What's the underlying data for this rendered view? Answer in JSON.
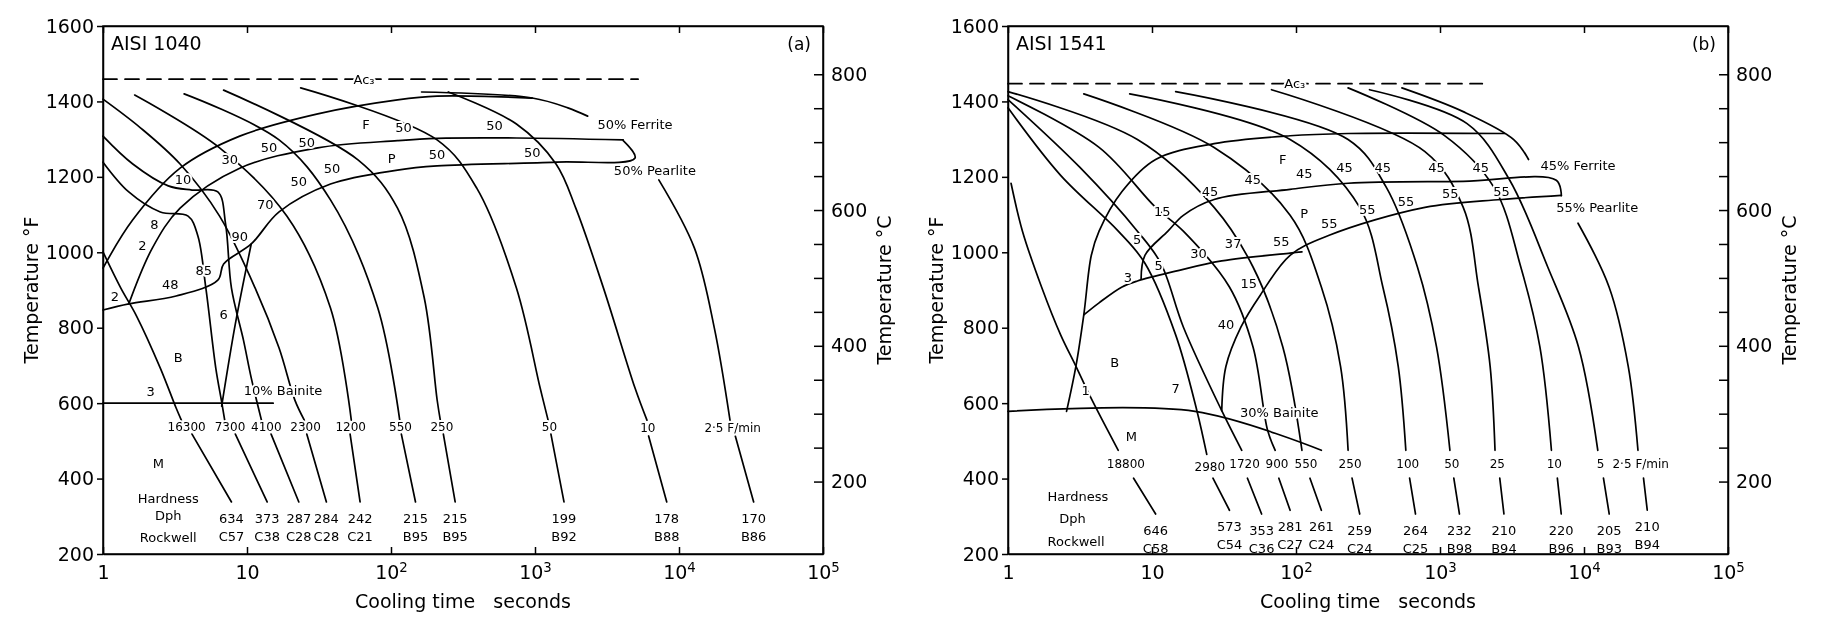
{
  "chart_data": [
    {
      "type": "line",
      "title": "AISI 1040",
      "subtitle": "(a)",
      "xlabel": "Cooling time   seconds",
      "ylabel": "Temperature °F",
      "y2label": "Temperature °C",
      "log": "x",
      "xlim": [
        1,
        100000
      ],
      "xticks": [
        {
          "value": 1,
          "label": "1"
        },
        {
          "value": 10,
          "label": "10"
        },
        {
          "value": 100,
          "label": "10$^{2}$"
        },
        {
          "value": 1000,
          "label": "10$^{3}$"
        },
        {
          "value": 10000,
          "label": "10$^{4}$"
        },
        {
          "value": 100000,
          "label": "10$^{5}$"
        }
      ],
      "ylim": [
        200,
        1600
      ],
      "yticks": [
        200,
        400,
        600,
        800,
        1000,
        1200,
        1400,
        1600
      ],
      "y2lim": [
        93.3,
        871.1
      ],
      "y2ticks": [
        200,
        {
          "value": 250,
          "label": null
        },
        {
          "value": 300,
          "label": null
        },
        {
          "value": 350,
          "label": null
        },
        400,
        {
          "value": 450,
          "label": null
        },
        {
          "value": 500,
          "label": null
        },
        {
          "value": 550,
          "label": null
        },
        600,
        {
          "value": 650,
          "label": null
        },
        {
          "value": 700,
          "label": null
        },
        {
          "value": 750,
          "label": null
        },
        800
      ],
      "series": [
        {
          "name": "16300",
          "color": "#000000",
          "x": [
            1,
            1.33,
            1.71,
            2.5,
            3.22,
            3.5,
            3.8,
            4.15,
            7.8
          ],
          "values": [
            1001,
            905,
            831,
            693,
            587,
            555,
            null,
            518,
            338
          ]
        },
        {
          "name": "7300",
          "color": "#000000",
          "x": [
            1,
            1.51,
            2.5,
            3.9,
            4.56,
            5.18,
            6.07,
            6.67,
            7.0,
            7.5,
            8.3,
            13.8
          ],
          "values": [
            1239,
            1160,
            1107,
            1096,
            1043,
            905,
            693,
            603,
            555,
            null,
            518,
            338
          ]
        },
        {
          "name": "4100",
          "color": "#000000",
          "x": [
            1,
            1.61,
            2.84,
            4.15,
            6.27,
            7.1,
            7.8,
            9.45,
            10.7,
            12.6,
            13.5,
            14.7,
            22.9
          ],
          "values": [
            1308,
            1234,
            1176,
            1165,
            1160,
            1075,
            905,
            767,
            667,
            555,
            null,
            518,
            338
          ]
        },
        {
          "name": "2300",
          "color": "#000000",
          "x": [
            1,
            1.82,
            3.43,
            6.45,
            11.4,
            16.7,
            21.5,
            25,
            25.5,
            26,
            35.6
          ],
          "values": [
            1406,
            1330,
            1234,
            1096,
            905,
            746,
            608,
            555,
            null,
            518,
            338
          ]
        },
        {
          "name": "1200",
          "color": "#000000",
          "x": [
            1.66,
            6.45,
            18.9,
            38,
            53,
            52.5,
            52,
            61
          ],
          "values": [
            1417,
            1277,
            1096,
            852,
            555,
            null,
            518,
            338
          ]
        },
        {
          "name": "550",
          "color": "#000000",
          "x": [
            3.66,
            16.7,
            38,
            81,
            115,
            116,
            118,
            148
          ],
          "values": [
            1420,
            1298,
            1139,
            852,
            555,
            null,
            518,
            338
          ]
        },
        {
          "name": "250",
          "color": "#000000",
          "x": [
            6.88,
            59,
            111,
            170,
            209,
            220,
            225,
            231,
            279
          ],
          "values": [
            1430,
            1245,
            1117,
            880,
            609,
            555,
            null,
            518,
            338
          ]
        },
        {
          "name": "50",
          "color": "#000000",
          "x": [
            23.6,
            209,
            394,
            743,
            1086,
            1233,
            1260,
            1290,
            1590
          ],
          "values": [
            1436,
            1298,
            1170,
            905,
            640,
            555,
            null,
            518,
            338
          ]
        },
        {
          "name": "10",
          "color": "#000000",
          "x": [
            250,
            743,
            1400,
            1920,
            2990,
            4950,
            5990,
            6100,
            6150,
            8220
          ],
          "values": [
            1425,
            1340,
            1234,
            1117,
            905,
            640,
            555,
            null,
            513,
            338
          ]
        },
        {
          "name": "2·5 F/min",
          "color": "#000000",
          "x": [
            163,
            957,
            1692,
            2320,
            5000,
            7240,
            12800,
            17600,
            22600,
            23500,
            24600,
            33000
          ],
          "values": [
            1425,
            1409,
            1383,
            1361,
            null,
            1192,
            1011,
            799,
            555,
            null,
            513,
            338
          ]
        },
        {
          "color": "#000000",
          "x": [
            1,
            1.61,
            3.43,
            8.9,
            31,
            111,
            209,
            957
          ],
          "values": [
            958,
            1086,
            1223,
            1308,
            1367,
            1404,
            1414,
            1409
          ]
        },
        {
          "color": "#000000",
          "x": [
            1.51,
            2.2,
            3.43,
            8.9,
            31,
            111,
            209,
            743,
            4100
          ],
          "values": [
            863,
            1011,
            1117,
            1223,
            1277,
            1296,
            1302,
            1303,
            1298
          ]
        },
        {
          "color": "#000000",
          "x": [
            1,
            1.51,
            3.22,
            6.27,
            6.88,
            10.7,
            16.7,
            38,
            111,
            209,
            1400,
            4950,
            4100
          ],
          "values": [
            847,
            863,
            884,
            926,
            969,
            1022,
            1107,
            1181,
            1218,
            1229,
            1239,
            1250,
            1296
          ]
        },
        {
          "color": "#000000",
          "x": [
            6.67,
            8.3,
            10.7
          ],
          "values": [
            592,
            810,
            1022
          ]
        },
        {
          "color": "#000000",
          "x": [
            1,
            15.2
          ],
          "values": [
            600,
            600
          ]
        },
        {
          "color": "#000000",
          "line_style": "dashed",
          "x": [
            1,
            5200
          ],
          "values": [
            1459,
            1459
          ]
        }
      ],
      "annotations": [
        {
          "text": "Ac₃",
          "x": 65,
          "y": 1459
        },
        "F",
        "P",
        "B",
        "M",
        "50",
        "50",
        "50",
        "30",
        "10",
        "50",
        "50",
        "50",
        "70",
        "90",
        "8",
        "2",
        "48",
        "85",
        "2",
        "6",
        "3",
        "10% Bainite",
        "50",
        "50",
        "50% Ferrite",
        "50% Pearlite",
        "Hardness",
        "Dph",
        "Rockwell",
        {
          "text": "634\nC57",
          "x": 7.8,
          "y": 338
        },
        {
          "text": "373\nC38",
          "x": 13.8,
          "y": 338
        },
        {
          "text": "287\nC28",
          "x": 22.9,
          "y": 338
        },
        {
          "text": "284\nC28",
          "x": 35.6,
          "y": 338
        },
        {
          "text": "242\nC21",
          "x": 61,
          "y": 338
        },
        {
          "text": "215\nB95",
          "x": 148,
          "y": 338
        },
        {
          "text": "215\nB95",
          "x": 279,
          "y": 338
        },
        {
          "text": "199\nB92",
          "x": 1590,
          "y": 338
        },
        {
          "text": "178\nB88",
          "x": 8220,
          "y": 338
        },
        {
          "text": "170\nB86",
          "x": 33000,
          "y": 338
        }
      ]
    },
    {
      "type": "line",
      "title": "AISI 1541",
      "subtitle": "(b)",
      "xlabel": "Cooling time   seconds",
      "ylabel": "Temperature °F",
      "y2label": "Temperature °C",
      "log": "x",
      "xlim": [
        1,
        100000
      ],
      "xticks": [
        {
          "value": 1,
          "label": "1"
        },
        {
          "value": 10,
          "label": "10"
        },
        {
          "value": 100,
          "label": "10$^{2}$"
        },
        {
          "value": 1000,
          "label": "10$^{3}$"
        },
        {
          "value": 10000,
          "label": "10$^{4}$"
        },
        {
          "value": 100000,
          "label": "10$^{5}$"
        }
      ],
      "ylim": [
        200,
        1600
      ],
      "yticks": [
        200,
        400,
        600,
        800,
        1000,
        1200,
        1400,
        1600
      ],
      "y2lim": [
        93.3,
        871.1
      ],
      "y2ticks": [
        200,
        {
          "value": 250,
          "label": null
        },
        {
          "value": 300,
          "label": null
        },
        {
          "value": 350,
          "label": null
        },
        400,
        {
          "value": 450,
          "label": null
        },
        {
          "value": 500,
          "label": null
        },
        {
          "value": 550,
          "label": null
        },
        600,
        {
          "value": 650,
          "label": null
        },
        {
          "value": 700,
          "label": null
        },
        {
          "value": 750,
          "label": null
        },
        800
      ],
      "series": [
        {
          "name": "18800",
          "color": "#000000",
          "x": [
            1.05,
            1.26,
            1.71,
            2.32,
            2.97,
            3.79,
            5.83,
            6.5,
            7.45,
            10.6
          ],
          "values": [
            1183,
            1056,
            908,
            781,
            697,
            612,
            475,
            null,
            401,
            306
          ]
        },
        {
          "name": "2980",
          "color": "#000000",
          "x": [
            1,
            2.32,
            5.83,
            8.93,
            14.6,
            20.5,
            24,
            25,
            26.5,
            34.5
          ],
          "values": [
            1383,
            1204,
            1056,
            971,
            781,
            580,
            464,
            null,
            401,
            316
          ]
        },
        {
          "name": "1720",
          "color": "#000000",
          "x": [
            1,
            3.16,
            7.92,
            11.5,
            16.5,
            30.5,
            42,
            44,
            46,
            57.7
          ],
          "values": [
            1405,
            1225,
            1056,
            971,
            802,
            580,
            475,
            null,
            401,
            306
          ]
        },
        {
          "name": "900",
          "color": "#000000",
          "x": [
            1,
            4.29,
            10.6,
            16.5,
            34.5,
            50.3,
            63.5,
            71.7,
            73,
            76,
            91
          ],
          "values": [
            1415,
            1278,
            1119,
            1056,
            908,
            749,
            528,
            475,
            null,
            401,
            316
          ]
        },
        {
          "name": "550",
          "color": "#000000",
          "x": [
            1,
            7.92,
            27,
            50.3,
            81,
            110,
            115,
            125,
            150
          ],
          "values": [
            1426,
            1299,
            1119,
            961,
            749,
            475,
            null,
            401,
            316
          ]
        },
        {
          "name": "250",
          "color": "#000000",
          "x": [
            3.36,
            27,
            91,
            150,
            204,
            230,
            238,
            245,
            277
          ],
          "values": [
            1420,
            1278,
            1098,
            908,
            697,
            475,
            null,
            401,
            306
          ]
        },
        {
          "name": "100",
          "color": "#000000",
          "x": [
            7,
            91,
            277,
            401,
            513,
            579,
            600,
            615,
            676
          ],
          "values": [
            1420,
            1299,
            1119,
            908,
            697,
            475,
            null,
            401,
            306
          ]
        },
        {
          "name": "50",
          "color": "#000000",
          "x": [
            14.6,
            230,
            424,
            697,
            946,
            1172,
            1200,
            1247,
            1365
          ],
          "values": [
            1426,
            1299,
            1172,
            961,
            749,
            475,
            null,
            401,
            306
          ]
        },
        {
          "name": "25",
          "color": "#000000",
          "x": [
            67.6,
            786,
            1450,
            1850,
            2230,
            2410,
            2500,
            2600,
            2780
          ],
          "values": [
            1431,
            1267,
            1119,
            908,
            697,
            475,
            null,
            401,
            306
          ]
        },
        {
          "name": "10",
          "color": "#000000",
          "x": [
            230,
            1070,
            2370,
            3640,
            4940,
            5940,
            6200,
            6530,
            6950
          ],
          "values": [
            1436,
            1310,
            1172,
            961,
            749,
            475,
            null,
            401,
            306
          ]
        },
        {
          "name": "5",
          "color": "#000000",
          "x": [
            324,
            1542,
            3030,
            5600,
            9160,
            12470,
            13000,
            13650,
            14970
          ],
          "values": [
            1431,
            1341,
            1193,
            961,
            749,
            475,
            null,
            401,
            306
          ]
        },
        {
          "name": "2·5 F/min",
          "color": "#000000",
          "x": [
            544,
            1450,
            3250,
            4120,
            6000,
            9090,
            14930,
            20300,
            23700,
            24500,
            25900,
            27500
          ],
          "values": [
            1436,
            1373,
            1299,
            1246,
            null,
            1077,
            908,
            697,
            475,
            null,
            401,
            316
          ]
        },
        {
          "color": "#000000",
          "x": [
            2.55,
            2.97,
            3.36,
            3.79,
            4.29,
            6.19,
            10.6,
            27,
            91,
            230,
            2800
          ],
          "values": [
            578,
            700,
            834,
            992,
            1056,
            1161,
            1246,
            1288,
            1309,
            1315,
            1315
          ]
        },
        {
          "color": "#000000",
          "x": [
            3.36,
            4.29,
            6.19,
            7.92,
            14.6,
            30.5,
            91,
            110
          ],
          "values": [
            834,
            866,
            908,
            924,
            950,
            977,
            998,
            1001
          ]
        },
        {
          "color": "#000000",
          "x": [
            8.4,
            8.93,
            12.9,
            16.5,
            27,
            91,
            230,
            1450,
            6420,
            6960
          ],
          "values": [
            929,
            992,
            1056,
            1098,
            1140,
            1167,
            1183,
            1188,
            1191,
            1150
          ]
        },
        {
          "color": "#000000",
          "x": [
            30.5,
            32.6,
            41.5,
            56.6,
            91,
            170,
            786,
            2670,
            6960
          ],
          "values": [
            580,
            697,
            802,
            887,
            992,
            1045,
            1119,
            1140,
            1151
          ]
        },
        {
          "color": "#000000",
          "x": [
            1,
            19.9,
            150
          ],
          "values": [
            578,
            578,
            475
          ]
        },
        {
          "color": "#000000",
          "line_style": "dashed",
          "x": [
            1,
            1967
          ],
          "values": [
            1447,
            1447
          ]
        }
      ],
      "annotations": [
        {
          "text": "Ac₃",
          "x": 98,
          "y": 1447
        },
        "1",
        "B",
        "M",
        "7",
        "30% Bainite",
        "40",
        "15",
        "55",
        "37",
        "30",
        "5",
        "3",
        "5",
        "15",
        "45",
        "45",
        "F",
        "45",
        "45",
        "P",
        "55",
        "45",
        "45",
        "45",
        "45% Ferrite",
        "55",
        "55",
        "55",
        "55",
        "55% Pearlite",
        "Hardness",
        "Dph",
        "Rockwell",
        {
          "text": "646\nC58",
          "x": 10.6,
          "y": 306
        },
        {
          "text": "573\nC54",
          "x": 34.5,
          "y": 316
        },
        {
          "text": "353\nC36",
          "x": 57.7,
          "y": 306
        },
        {
          "text": "281\nC27",
          "x": 91,
          "y": 316
        },
        {
          "text": "261\nC24",
          "x": 150,
          "y": 316
        },
        {
          "text": "259\nC24",
          "x": 277,
          "y": 306
        },
        {
          "text": "264\nC25",
          "x": 676,
          "y": 306
        },
        {
          "text": "232\nB98",
          "x": 1365,
          "y": 306
        },
        {
          "text": "210\nB94",
          "x": 2780,
          "y": 306
        },
        {
          "text": "220\nB96",
          "x": 6950,
          "y": 306
        },
        {
          "text": "205\nB93",
          "x": 14970,
          "y": 306
        },
        {
          "text": "210\nB94",
          "x": 27500,
          "y": 316
        }
      ]
    }
  ]
}
